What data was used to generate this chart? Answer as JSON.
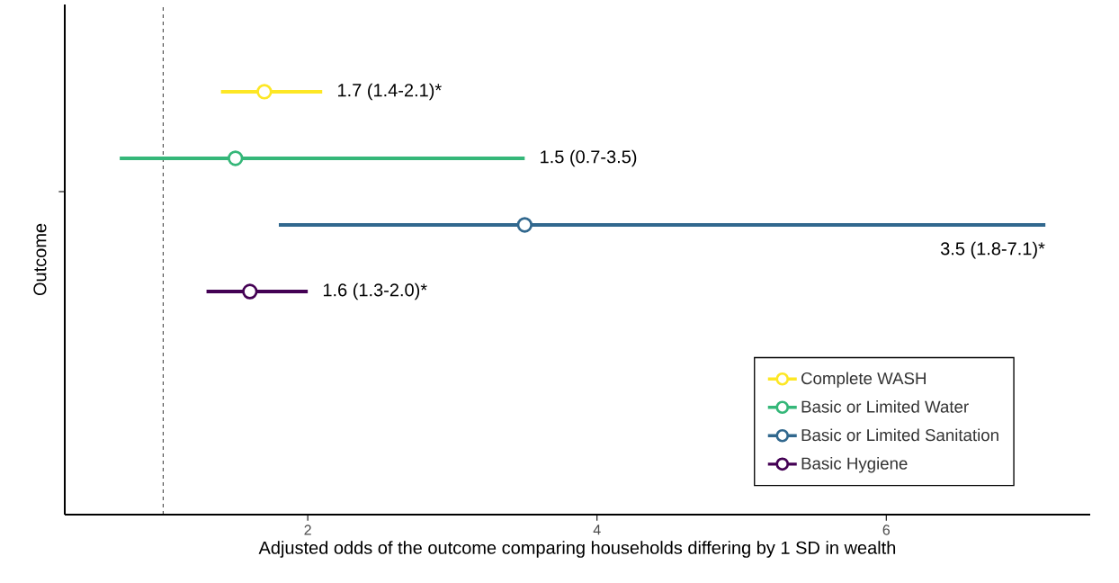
{
  "chart_data": {
    "type": "scatter",
    "orientation": "horizontal",
    "ylabel": "Outcome",
    "xlabel": "Adjusted odds of the outcome comparing households differing by 1 SD in wealth",
    "categories": [
      null
    ],
    "series": [
      {
        "name": "Complete WASH",
        "color": "#fde725",
        "values": [
          1.7
        ],
        "errors": [
          [
            1.4,
            2.1
          ]
        ]
      },
      {
        "name": "Basic or Limited Water",
        "color": "#35b779",
        "values": [
          1.5
        ],
        "errors": [
          [
            0.7,
            3.5
          ]
        ]
      },
      {
        "name": "Basic or Limited Sanitation",
        "color": "#31688e",
        "values": [
          3.5
        ],
        "errors": [
          [
            1.8,
            7.1
          ]
        ]
      },
      {
        "name": "Basic Hygiene",
        "color": "#440154",
        "values": [
          1.6
        ],
        "errors": [
          [
            1.3,
            2.0
          ]
        ]
      }
    ],
    "annotations": [
      {
        "text": "1.7 (1.4-2.1)*",
        "x": 2.1
      },
      {
        "text": "1.5 (0.7-3.5)",
        "x": 3.5
      },
      "3.5 (1.8-7.1)*",
      {
        "text": "1.6 (1.3-2.0)*",
        "x": 2.0
      }
    ],
    "xlim": [
      0.32,
      7.41
    ],
    "xticks": [
      2,
      4,
      6
    ],
    "ref_lines": [
      {
        "axis": "x",
        "value": 1,
        "line_style": "dashed"
      }
    ],
    "marker": "circle",
    "legend": "bottom right",
    "tick_labels": "x"
  }
}
